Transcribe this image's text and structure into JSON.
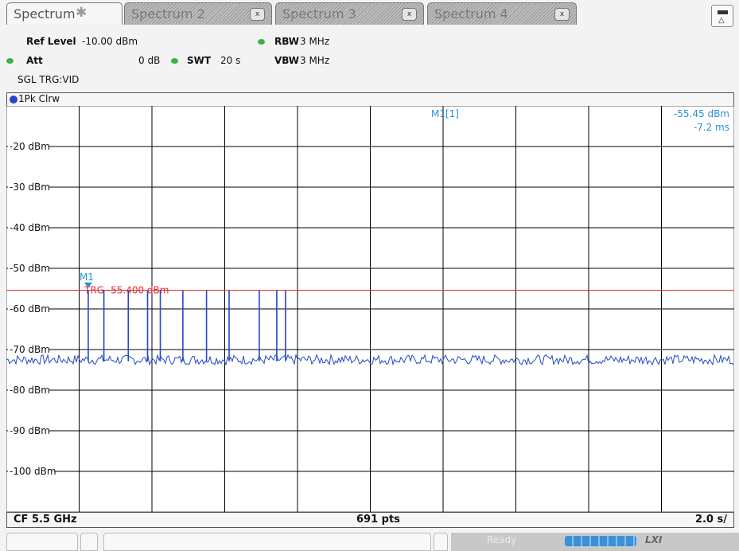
{
  "tabs": [
    {
      "label": "Spectrum",
      "active": true
    },
    {
      "label": "Spectrum 2",
      "close": "x"
    },
    {
      "label": "Spectrum 3",
      "close": "x"
    },
    {
      "label": "Spectrum 4",
      "close": "x"
    }
  ],
  "settings": {
    "ref_level_label": "Ref Level",
    "ref_level_value": "-10.00 dBm",
    "rbw_label": "RBW",
    "rbw_value": "3 MHz",
    "att_label": "Att",
    "att_value": "0 dB",
    "swt_label": "SWT",
    "swt_value": "20 s",
    "vbw_label": "VBW",
    "vbw_value": "3 MHz",
    "mode": "SGL TRG:VID"
  },
  "trace": {
    "label": "1Pk Clrw",
    "color": "#2348c8"
  },
  "marker": {
    "name": "M1",
    "readout_label": "M1[1]",
    "level": "-55.45 dBm",
    "time": "-7.2 ms",
    "color": "#2a90d0"
  },
  "trigger": {
    "label": "TRG",
    "value": "-55.400 dBm",
    "color": "#e23030"
  },
  "footer": {
    "center_freq": "CF 5.5 GHz",
    "points": "691 pts",
    "sweep": "2.0 s/"
  },
  "status": {
    "ready": "Ready",
    "lxi": "LXI"
  },
  "chart_data": {
    "type": "line",
    "yunit": "dBm",
    "ylim": [
      -110,
      -10
    ],
    "xlim": [
      0,
      20
    ],
    "xunit": "s",
    "y_tick_labels": [
      "-20 dBm",
      "-30 dBm",
      "-40 dBm",
      "-50 dBm",
      "-60 dBm",
      "-70 dBm",
      "-80 dBm",
      "-90 dBm",
      "-100 dBm"
    ],
    "y_tick_values": [
      -20,
      -30,
      -40,
      -50,
      -60,
      -70,
      -80,
      -90,
      -100
    ],
    "x_divisions": 10,
    "grid": true,
    "noise_floor": -72.5,
    "trigger_level": -55.4,
    "marker": {
      "x": 2.25,
      "y": -55.45
    },
    "pulses": [
      {
        "x": 2.25,
        "y": -55.5
      },
      {
        "x": 2.68,
        "y": -55.5
      },
      {
        "x": 3.35,
        "y": -55.5
      },
      {
        "x": 3.88,
        "y": -55.5
      },
      {
        "x": 4.23,
        "y": -55.5
      },
      {
        "x": 4.85,
        "y": -55.5
      },
      {
        "x": 5.5,
        "y": -55.5
      },
      {
        "x": 6.12,
        "y": -55.5
      },
      {
        "x": 6.95,
        "y": -55.5
      },
      {
        "x": 7.43,
        "y": -55.5
      },
      {
        "x": 7.67,
        "y": -55.5
      }
    ]
  }
}
